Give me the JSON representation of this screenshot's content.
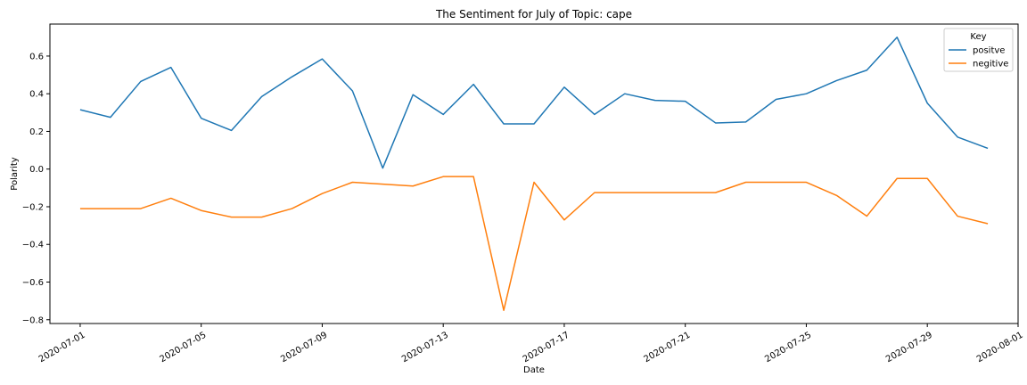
{
  "chart_data": {
    "type": "line",
    "title": "The Sentiment for July of Topic: cape",
    "xlabel": "Date",
    "ylabel": "Polarity",
    "x": [
      "2020-07-01",
      "2020-07-02",
      "2020-07-03",
      "2020-07-04",
      "2020-07-05",
      "2020-07-06",
      "2020-07-07",
      "2020-07-08",
      "2020-07-09",
      "2020-07-10",
      "2020-07-11",
      "2020-07-12",
      "2020-07-13",
      "2020-07-14",
      "2020-07-15",
      "2020-07-16",
      "2020-07-17",
      "2020-07-18",
      "2020-07-19",
      "2020-07-20",
      "2020-07-21",
      "2020-07-22",
      "2020-07-23",
      "2020-07-24",
      "2020-07-25",
      "2020-07-26",
      "2020-07-27",
      "2020-07-28",
      "2020-07-29",
      "2020-07-30",
      "2020-07-31"
    ],
    "series": [
      {
        "name": "positve",
        "color": "#1f77b4",
        "values": [
          0.315,
          0.275,
          0.465,
          0.54,
          0.27,
          0.205,
          0.385,
          0.49,
          0.585,
          0.415,
          0.005,
          0.395,
          0.29,
          0.45,
          0.24,
          0.24,
          0.435,
          0.29,
          0.4,
          0.365,
          0.36,
          0.245,
          0.25,
          0.37,
          0.4,
          0.47,
          0.525,
          0.7,
          0.35,
          0.17,
          0.11
        ]
      },
      {
        "name": "negitive",
        "color": "#ff7f0e",
        "values": [
          -0.21,
          -0.21,
          -0.21,
          -0.155,
          -0.22,
          -0.255,
          -0.255,
          -0.21,
          -0.13,
          -0.07,
          -0.08,
          -0.09,
          -0.04,
          -0.04,
          -0.75,
          -0.07,
          -0.27,
          -0.125,
          -0.125,
          -0.125,
          -0.125,
          -0.125,
          -0.07,
          -0.07,
          -0.07,
          -0.14,
          -0.25,
          -0.05,
          -0.05,
          -0.25,
          -0.29
        ]
      }
    ],
    "x_ticks": [
      "2020-07-01",
      "2020-07-05",
      "2020-07-09",
      "2020-07-13",
      "2020-07-17",
      "2020-07-21",
      "2020-07-25",
      "2020-07-29",
      "2020-08-01"
    ],
    "y_ticks": [
      "0.6",
      "0.4",
      "0.2",
      "0.0",
      "−0.2",
      "−0.4",
      "−0.6",
      "−0.8"
    ],
    "ylim": [
      -0.82,
      0.77
    ],
    "xlim": [
      "2020-06-30",
      "2020-08-01"
    ],
    "legend": {
      "title": "Key",
      "position": "top-right"
    },
    "grid": false
  }
}
